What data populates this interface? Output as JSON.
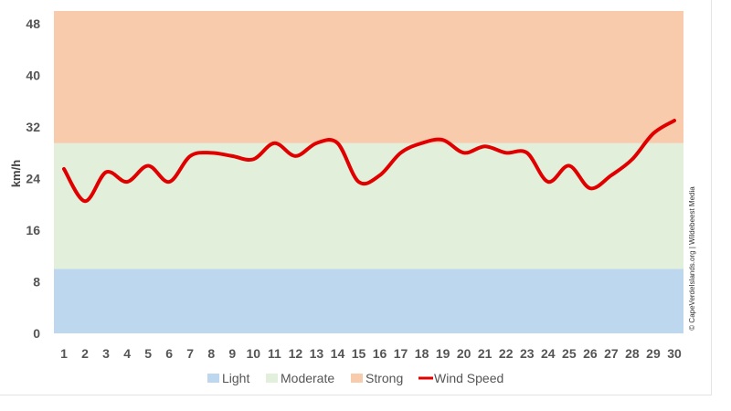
{
  "chart_data": {
    "type": "line",
    "ylabel": "km/h",
    "ylim": [
      0,
      50
    ],
    "y_ticks": [
      0,
      8,
      16,
      24,
      32,
      40,
      48
    ],
    "x": [
      "1",
      "2",
      "3",
      "4",
      "5",
      "6",
      "7",
      "8",
      "9",
      "10",
      "11",
      "12",
      "13",
      "14",
      "15",
      "16",
      "17",
      "18",
      "19",
      "20",
      "21",
      "22",
      "23",
      "24",
      "25",
      "26",
      "27",
      "28",
      "29",
      "30"
    ],
    "bands": [
      {
        "name": "Light",
        "from": 0,
        "to": 10,
        "color": "#bdd7ee"
      },
      {
        "name": "Moderate",
        "from": 10,
        "to": 29.5,
        "color": "#e2efda"
      },
      {
        "name": "Strong",
        "from": 29.5,
        "to": 50,
        "color": "#f8cbad"
      }
    ],
    "series": [
      {
        "name": "Wind Speed",
        "color": "#e00000",
        "values": [
          25.5,
          20.5,
          25,
          23.5,
          26,
          23.5,
          27.5,
          28,
          27.5,
          27,
          29.5,
          27.5,
          29.5,
          29.5,
          23.5,
          24.5,
          28,
          29.5,
          30,
          28,
          29,
          28,
          28,
          23.5,
          26,
          22.5,
          24.5,
          27,
          31,
          33
        ]
      }
    ],
    "legend": [
      "Light",
      "Moderate",
      "Strong",
      "Wind Speed"
    ],
    "legend_position": "bottom",
    "credit": "© CapeVerdeIslands.org | Wildebeest Media"
  }
}
